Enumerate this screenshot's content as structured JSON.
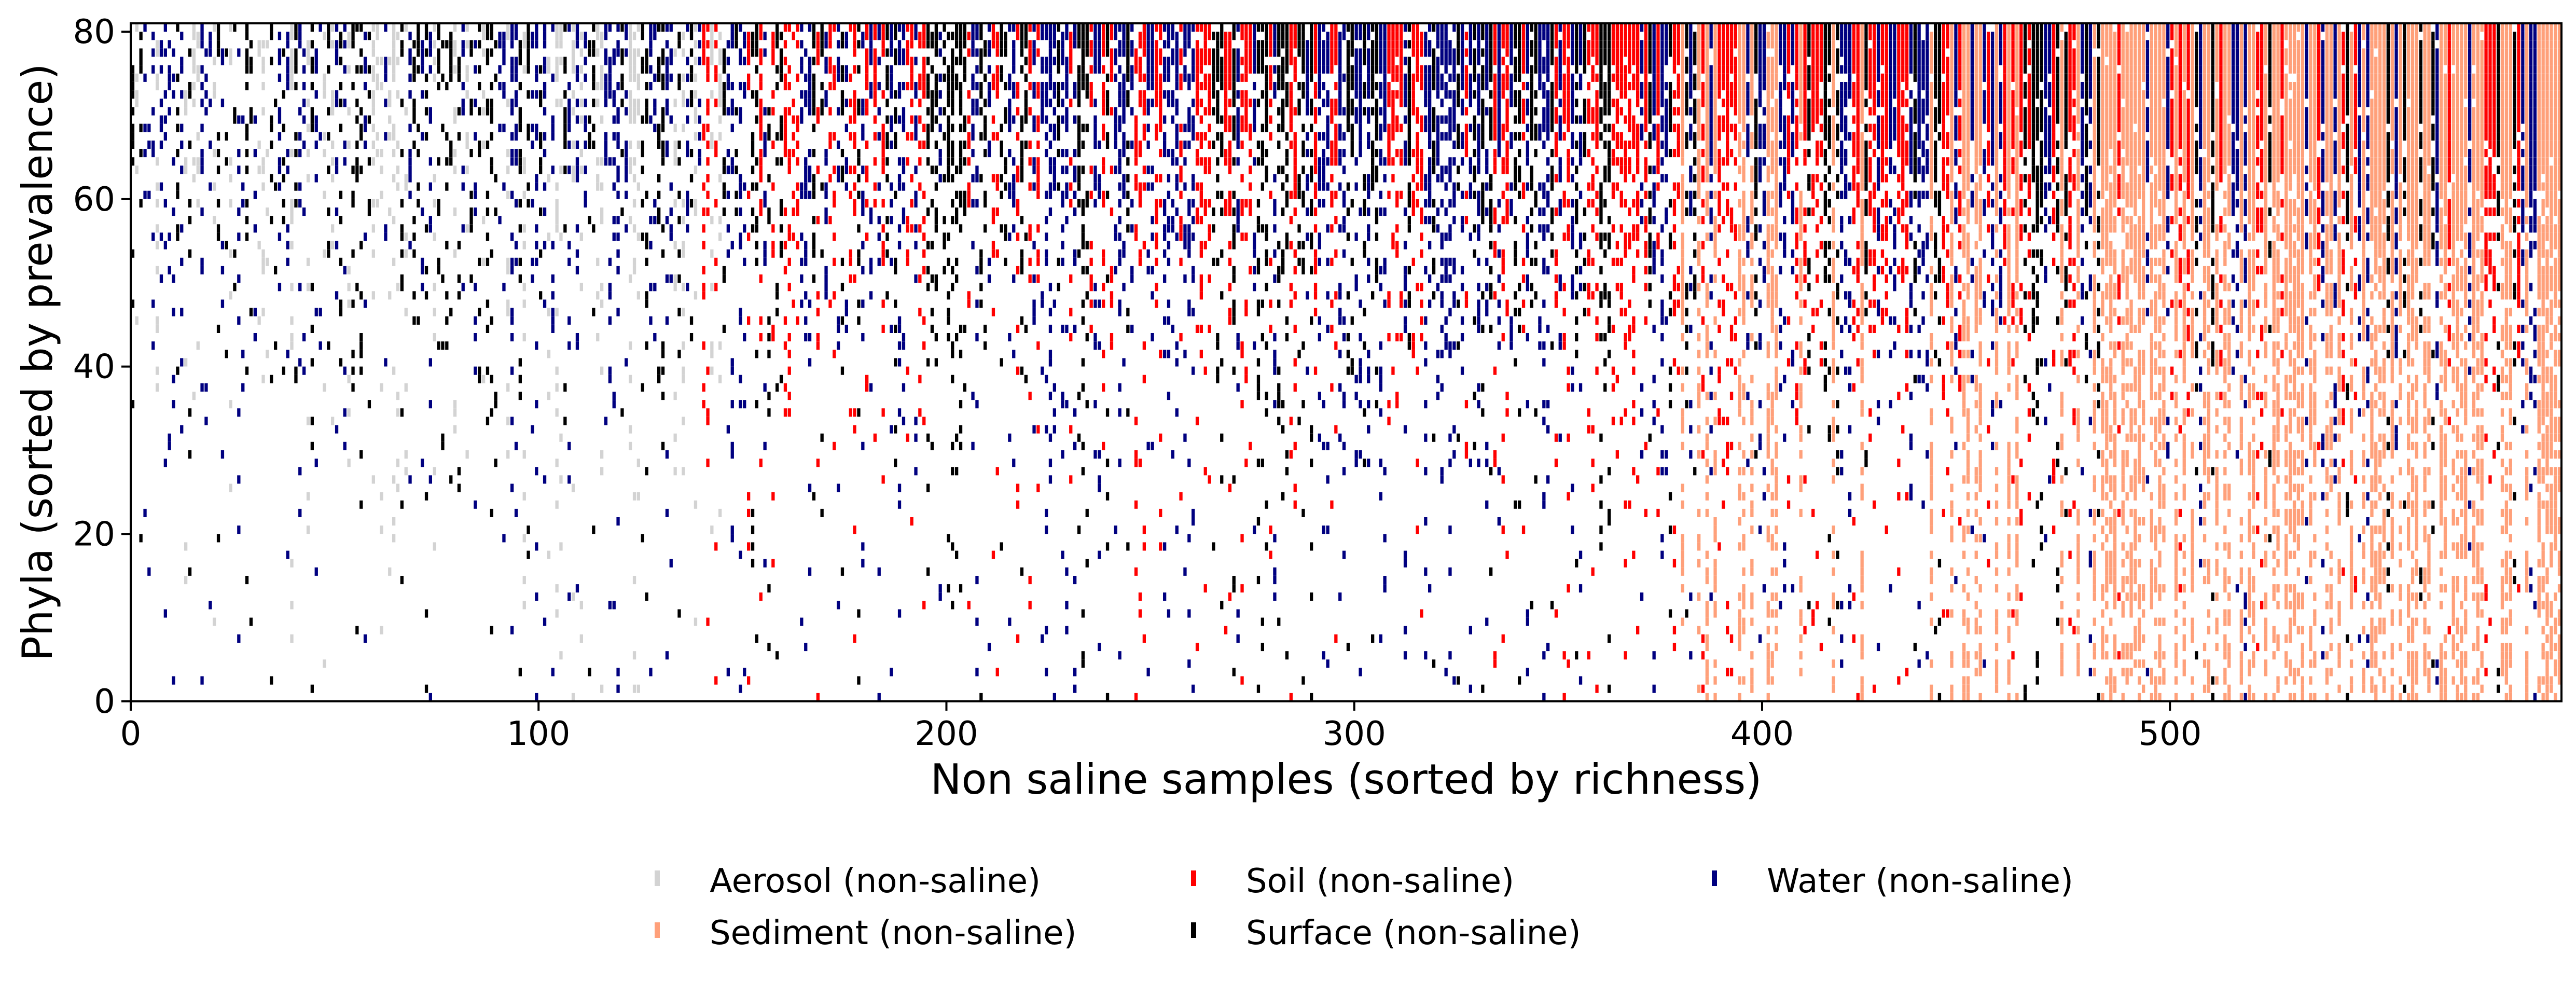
{
  "chart_data": {
    "type": "heatmap",
    "title": "",
    "xlabel": "Non saline samples (sorted by richness)",
    "ylabel": "Phyla (sorted by prevalence)",
    "xlim": [
      0,
      596
    ],
    "ylim": [
      0,
      81
    ],
    "xticks": [
      0,
      100,
      200,
      300,
      400,
      500
    ],
    "yticks": [
      0,
      20,
      40,
      60,
      80
    ],
    "legend_position": "bottom-center",
    "series": [
      {
        "name": "Aerosol (non-saline)",
        "color": "#d3d3d3",
        "x_range": [
          0,
          145
        ],
        "density_top": 0.85,
        "density_bottom": 0.05
      },
      {
        "name": "Sediment (non-saline)",
        "color": "#ffa07a",
        "x_range": [
          380,
          596
        ],
        "density_top": 0.95,
        "density_bottom": 0.35
      },
      {
        "name": "Soil (non-saline)",
        "color": "#ff0000",
        "x_range": [
          140,
          596
        ],
        "density_top": 0.9,
        "density_bottom": 0.03
      },
      {
        "name": "Surface (non-saline)",
        "color": "#000000",
        "x_range": [
          0,
          596
        ],
        "density_top": 0.9,
        "density_bottom": 0.04
      },
      {
        "name": "Water (non-saline)",
        "color": "#000080",
        "x_range": [
          0,
          596
        ],
        "density_top": 0.9,
        "density_bottom": 0.04
      }
    ]
  }
}
